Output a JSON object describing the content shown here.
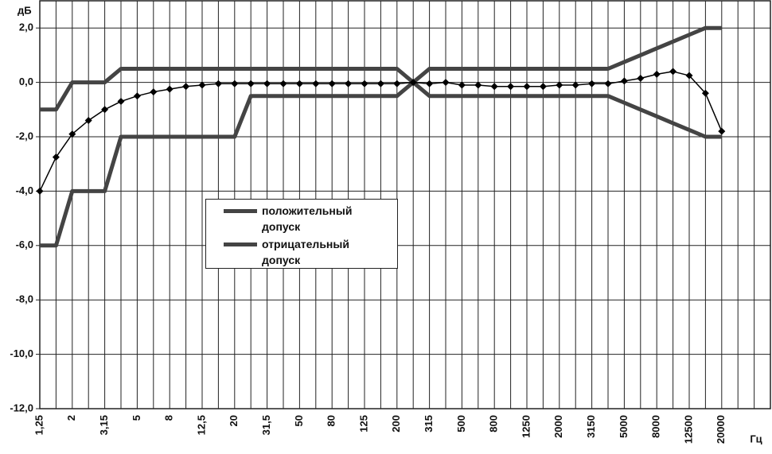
{
  "chart_data": {
    "type": "line",
    "y_label": "дБ",
    "x_label": "Гц",
    "categories": [
      "1,25",
      null,
      "2",
      null,
      "3,15",
      null,
      "5",
      null,
      "8",
      null,
      "12,5",
      null,
      "20",
      null,
      "31,5",
      null,
      "50",
      null,
      "80",
      null,
      "125",
      null,
      "200",
      null,
      "315",
      null,
      "500",
      null,
      "800",
      null,
      "1250",
      null,
      "2000",
      null,
      "3150",
      null,
      "5000",
      null,
      "8000",
      null,
      "12500",
      null,
      "20000",
      null,
      null,
      null
    ],
    "ylim": [
      -12,
      3
    ],
    "yticks": [
      {
        "value": -12,
        "label": "-12,0"
      },
      {
        "value": -10,
        "label": "-10,0"
      },
      {
        "value": -8,
        "label": "-8,0"
      },
      {
        "value": -6,
        "label": "-6,0"
      },
      {
        "value": -4,
        "label": "-4,0"
      },
      {
        "value": -2,
        "label": "-2,0"
      },
      {
        "value": 0,
        "label": "0,0"
      },
      {
        "value": 2,
        "label": "2,0"
      }
    ],
    "grid": true,
    "series": [
      {
        "name": "положительный допуск",
        "color": "#444444",
        "values": [
          -1,
          -1,
          0,
          0,
          0,
          0.5,
          0.5,
          0.5,
          0.5,
          0.5,
          0.5,
          0.5,
          0.5,
          0.5,
          0.5,
          0.5,
          0.5,
          0.5,
          0.5,
          0.5,
          0.5,
          0.5,
          0.5,
          0,
          0.5,
          0.5,
          0.5,
          0.5,
          0.5,
          0.5,
          0.5,
          0.5,
          0.5,
          0.5,
          0.5,
          0.5,
          0.75,
          1,
          1.25,
          1.5,
          1.75,
          2,
          2,
          null,
          null,
          null
        ]
      },
      {
        "name": "отрицательный допуск",
        "color": "#444444",
        "values": [
          -6,
          -6,
          -4,
          -4,
          -4,
          -2,
          -2,
          -2,
          -2,
          -2,
          -2,
          -2,
          -2,
          -0.5,
          -0.5,
          -0.5,
          -0.5,
          -0.5,
          -0.5,
          -0.5,
          -0.5,
          -0.5,
          -0.5,
          0,
          -0.5,
          -0.5,
          -0.5,
          -0.5,
          -0.5,
          -0.5,
          -0.5,
          -0.5,
          -0.5,
          -0.5,
          -0.5,
          -0.5,
          -0.75,
          -1,
          -1.25,
          -1.5,
          -1.75,
          -2,
          -2,
          null,
          null,
          null
        ]
      },
      {
        "color": "#000000",
        "values": [
          -4,
          -2.75,
          -1.9,
          -1.4,
          -1,
          -0.7,
          -0.5,
          -0.35,
          -0.25,
          -0.15,
          -0.1,
          -0.05,
          -0.05,
          -0.05,
          -0.05,
          -0.05,
          -0.05,
          -0.05,
          -0.05,
          -0.05,
          -0.05,
          -0.05,
          -0.05,
          0,
          -0.05,
          0,
          -0.1,
          -0.1,
          -0.15,
          -0.15,
          -0.15,
          -0.15,
          -0.1,
          -0.1,
          -0.05,
          -0.05,
          0.05,
          0.15,
          0.3,
          0.4,
          0.25,
          -0.4,
          -1.8,
          null,
          null,
          null
        ]
      }
    ]
  }
}
